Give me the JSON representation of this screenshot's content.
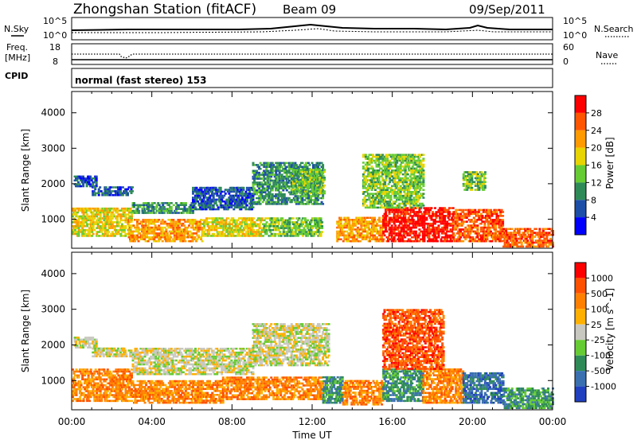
{
  "header": {
    "station": "Zhongshan Station (fitACF)",
    "beam": "Beam 09",
    "date": "09/Sep/2011"
  },
  "noise_panel": {
    "left_label": "N.Sky",
    "right_label": "N.Search",
    "y_ticks": [
      "10^5",
      "10^0"
    ]
  },
  "freq_panel": {
    "left_label_line1": "Freq.",
    "left_label_line2": "[MHz]",
    "left_ticks": [
      "18",
      "8"
    ],
    "right_label": "Nave",
    "right_ticks": [
      "60",
      "0"
    ]
  },
  "cpid_panel": {
    "label": "CPID",
    "mode_text": "normal (fast stereo) 153"
  },
  "chart_data": [
    {
      "type": "heatmap",
      "name": "power",
      "ylabel": "Slant Range [km]",
      "x_tick_labels": [
        "00:00",
        "04:00",
        "08:00",
        "12:00",
        "16:00",
        "20:00",
        "00:00"
      ],
      "xlim_hours": [
        0,
        24
      ],
      "y_ticks": [
        1000,
        2000,
        3000,
        4000
      ],
      "ylim": [
        180,
        4600
      ],
      "colorbar": {
        "label": "Power [dB]",
        "ticks": [
          "4",
          "8",
          "12",
          "16",
          "20",
          "24",
          "28"
        ],
        "colors": [
          "#0000ff",
          "#1d4fa8",
          "#2e8b57",
          "#66cc33",
          "#e8d400",
          "#ff9a00",
          "#ff5500",
          "#ff0000"
        ]
      },
      "regions": [
        {
          "t0": 0.1,
          "t1": 1.2,
          "r0": 1900,
          "r1": 2200,
          "level": 1
        },
        {
          "t0": 1.0,
          "t1": 3.0,
          "r0": 1650,
          "r1": 1900,
          "level": 1
        },
        {
          "t0": 3.0,
          "t1": 6.0,
          "r0": 1150,
          "r1": 1450,
          "level": 2
        },
        {
          "t0": 6.0,
          "t1": 9.0,
          "r0": 1250,
          "r1": 1900,
          "level": 1
        },
        {
          "t0": 9.0,
          "t1": 12.5,
          "r0": 1400,
          "r1": 2600,
          "level": 2
        },
        {
          "t0": 11.0,
          "t1": 12.6,
          "r0": 1700,
          "r1": 2400,
          "level": 3
        },
        {
          "t0": 0.0,
          "t1": 3.0,
          "r0": 500,
          "r1": 1300,
          "level": 4
        },
        {
          "t0": 2.8,
          "t1": 6.5,
          "r0": 350,
          "r1": 1000,
          "level": 5
        },
        {
          "t0": 6.5,
          "t1": 9.5,
          "r0": 500,
          "r1": 1050,
          "level": 4
        },
        {
          "t0": 9.5,
          "t1": 12.5,
          "r0": 500,
          "r1": 1050,
          "level": 3
        },
        {
          "t0": 13.2,
          "t1": 15.5,
          "r0": 350,
          "r1": 1050,
          "level": 5
        },
        {
          "t0": 15.5,
          "t1": 19.0,
          "r0": 350,
          "r1": 1300,
          "level": 7
        },
        {
          "t0": 19.0,
          "t1": 21.5,
          "r0": 350,
          "r1": 1250,
          "level": 6
        },
        {
          "t0": 21.5,
          "t1": 24.0,
          "r0": 200,
          "r1": 700,
          "level": 6
        },
        {
          "t0": 14.5,
          "t1": 17.5,
          "r0": 1300,
          "r1": 2800,
          "level": 3
        },
        {
          "t0": 19.5,
          "t1": 20.6,
          "r0": 1800,
          "r1": 2300,
          "level": 3
        }
      ]
    },
    {
      "type": "heatmap",
      "name": "velocity",
      "ylabel": "Slant Range [km]",
      "xlabel": "Time UT",
      "x_tick_labels": [
        "00:00",
        "04:00",
        "08:00",
        "12:00",
        "16:00",
        "20:00",
        "00:00"
      ],
      "xlim_hours": [
        0,
        24
      ],
      "y_ticks": [
        1000,
        2000,
        3000,
        4000
      ],
      "ylim": [
        180,
        4600
      ],
      "colorbar": {
        "label": "Velocity [m s^-1]",
        "ticks": [
          "1000",
          "500",
          "100",
          "25",
          "-25",
          "-100",
          "-500",
          "-1000"
        ],
        "colors": [
          "#2040c0",
          "#3a70b0",
          "#2e8b57",
          "#66cc33",
          "#c8c8c0",
          "#ffb000",
          "#ff8000",
          "#ff5000",
          "#ff0000"
        ]
      },
      "regions": [
        {
          "t0": 0.1,
          "t1": 1.2,
          "r0": 1900,
          "r1": 2200,
          "level": 4
        },
        {
          "t0": 1.0,
          "t1": 3.0,
          "r0": 1650,
          "r1": 1900,
          "level": 4
        },
        {
          "t0": 3.0,
          "t1": 9.0,
          "r0": 1150,
          "r1": 1900,
          "level": 4
        },
        {
          "t0": 9.0,
          "t1": 12.8,
          "r0": 1400,
          "r1": 2600,
          "level": 4
        },
        {
          "t0": 0.0,
          "t1": 3.0,
          "r0": 400,
          "r1": 1300,
          "level": 6
        },
        {
          "t0": 3.0,
          "t1": 7.5,
          "r0": 350,
          "r1": 1000,
          "level": 6
        },
        {
          "t0": 7.5,
          "t1": 12.5,
          "r0": 450,
          "r1": 1100,
          "level": 6
        },
        {
          "t0": 12.5,
          "t1": 13.5,
          "r0": 350,
          "r1": 1100,
          "level": 2
        },
        {
          "t0": 13.5,
          "t1": 15.5,
          "r0": 300,
          "r1": 1000,
          "level": 6
        },
        {
          "t0": 15.5,
          "t1": 17.5,
          "r0": 400,
          "r1": 1300,
          "level": 2
        },
        {
          "t0": 17.5,
          "t1": 19.5,
          "r0": 350,
          "r1": 1300,
          "level": 6
        },
        {
          "t0": 19.5,
          "t1": 21.5,
          "r0": 350,
          "r1": 1200,
          "level": 1
        },
        {
          "t0": 21.5,
          "t1": 24.0,
          "r0": 200,
          "r1": 800,
          "level": 2
        },
        {
          "t0": 15.5,
          "t1": 18.5,
          "r0": 1300,
          "r1": 3000,
          "level": 7
        }
      ]
    }
  ]
}
